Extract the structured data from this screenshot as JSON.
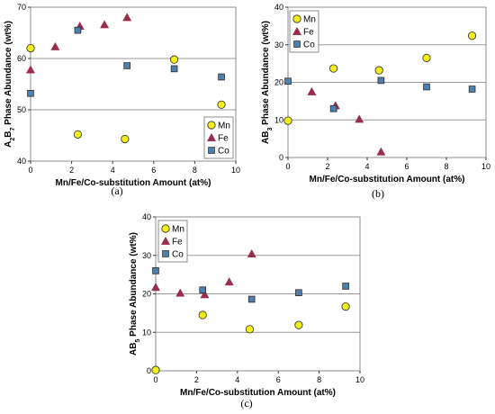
{
  "styles": {
    "mn_color": "#f2ee1c",
    "fe_color": "#9b2d4c",
    "co_color": "#4f7fae",
    "grid_color": "#9a9a9a"
  },
  "chart_data": [
    {
      "type": "scatter",
      "panel": "(a)",
      "xlabel": "Mn/Fe/Co-substitution Amount (at%)",
      "ylabel_parts": [
        "A",
        "2",
        "B",
        "7",
        " Phase Abundance (wt%)"
      ],
      "xlim": [
        0,
        10
      ],
      "ylim": [
        40,
        70
      ],
      "xticks": [
        0,
        2,
        4,
        6,
        8,
        10
      ],
      "yticks": [
        40,
        50,
        60,
        70
      ],
      "grid": "horizontal",
      "legend_position": "bottom-right",
      "series": [
        {
          "name": "Mn",
          "marker": "circle",
          "points": [
            [
              0,
              62.0
            ],
            [
              2.3,
              45.2
            ],
            [
              4.6,
              44.3
            ],
            [
              7.0,
              59.8
            ],
            [
              9.3,
              51.0
            ]
          ]
        },
        {
          "name": "Fe",
          "marker": "triangle",
          "points": [
            [
              0,
              57.8
            ],
            [
              1.2,
              62.3
            ],
            [
              2.4,
              66.3
            ],
            [
              3.6,
              66.6
            ],
            [
              4.7,
              68.0
            ]
          ]
        },
        {
          "name": "Co",
          "marker": "square",
          "points": [
            [
              0,
              53.2
            ],
            [
              2.3,
              65.5
            ],
            [
              4.7,
              58.6
            ],
            [
              7.0,
              58.0
            ],
            [
              9.3,
              56.4
            ]
          ]
        }
      ]
    },
    {
      "type": "scatter",
      "panel": "(b)",
      "xlabel": "Mn/Fe/Co-substitution Amount (at%)",
      "ylabel_parts": [
        "AB",
        "3",
        " Phase Abundance (wt%)"
      ],
      "xlim": [
        0,
        10
      ],
      "ylim": [
        0,
        40
      ],
      "xticks": [
        0,
        2,
        4,
        6,
        8,
        10
      ],
      "yticks": [
        0,
        10,
        20,
        30,
        40
      ],
      "grid": "horizontal",
      "legend_position": "top-left",
      "series": [
        {
          "name": "Mn",
          "marker": "circle",
          "points": [
            [
              0,
              9.8
            ],
            [
              2.3,
              23.7
            ],
            [
              4.6,
              23.2
            ],
            [
              7.0,
              26.5
            ],
            [
              9.3,
              32.4
            ]
          ]
        },
        {
          "name": "Fe",
          "marker": "triangle",
          "points": [
            [
              1.2,
              17.5
            ],
            [
              2.4,
              13.8
            ],
            [
              3.6,
              10.2
            ],
            [
              4.7,
              1.5
            ]
          ]
        },
        {
          "name": "Co",
          "marker": "square",
          "points": [
            [
              0,
              20.3
            ],
            [
              2.3,
              13.0
            ],
            [
              4.7,
              20.5
            ],
            [
              7.0,
              18.8
            ],
            [
              9.3,
              18.2
            ]
          ]
        }
      ]
    },
    {
      "type": "scatter",
      "panel": "(c)",
      "xlabel": "Mn/Fe/Co-substitution Amount (at%)",
      "ylabel_parts": [
        "AB",
        "5",
        " Phase Abundance (wt%)"
      ],
      "xlim": [
        0,
        10
      ],
      "ylim": [
        0,
        40
      ],
      "xticks": [
        0,
        2,
        4,
        6,
        8,
        10
      ],
      "yticks": [
        0,
        10,
        20,
        30,
        40
      ],
      "grid": "horizontal",
      "legend_position": "top-left",
      "series": [
        {
          "name": "Mn",
          "marker": "circle",
          "points": [
            [
              0,
              0.2
            ],
            [
              2.3,
              14.5
            ],
            [
              4.6,
              10.8
            ],
            [
              7.0,
              11.9
            ],
            [
              9.3,
              16.7
            ]
          ]
        },
        {
          "name": "Fe",
          "marker": "triangle",
          "points": [
            [
              0,
              21.7
            ],
            [
              1.2,
              20.2
            ],
            [
              2.4,
              19.8
            ],
            [
              3.6,
              23.1
            ],
            [
              4.7,
              30.4
            ]
          ]
        },
        {
          "name": "Co",
          "marker": "square",
          "points": [
            [
              0,
              26.0
            ],
            [
              2.3,
              21.0
            ],
            [
              4.7,
              18.6
            ],
            [
              7.0,
              20.3
            ],
            [
              9.3,
              22.0
            ]
          ]
        }
      ]
    }
  ]
}
